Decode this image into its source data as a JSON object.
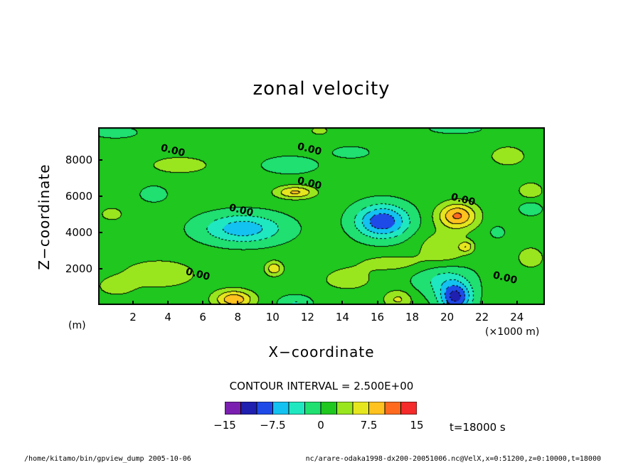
{
  "chart_data": {
    "type": "heatmap",
    "title": "zonal velocity",
    "xlabel": "X−coordinate",
    "ylabel": "Z−coordinate",
    "x_unit": "(×1000 m)",
    "y_unit": "(m)",
    "xlim": [
      0,
      25.6
    ],
    "ylim": [
      0,
      9800
    ],
    "x_ticks": [
      2,
      4,
      6,
      8,
      10,
      12,
      14,
      16,
      18,
      20,
      22,
      24
    ],
    "y_ticks": [
      2000,
      4000,
      6000,
      8000
    ],
    "contour_interval_text": "CONTOUR INTERVAL = 2.500E+00",
    "contour_labels": [
      {
        "x": 4.3,
        "z": 8500,
        "value": "0.00"
      },
      {
        "x": 12.1,
        "z": 8600,
        "value": "0.00"
      },
      {
        "x": 12.1,
        "z": 6700,
        "value": "0.00"
      },
      {
        "x": 8.2,
        "z": 5200,
        "value": "0.00"
      },
      {
        "x": 20.9,
        "z": 5800,
        "value": "0.00"
      },
      {
        "x": 5.7,
        "z": 1700,
        "value": "0.00"
      },
      {
        "x": 23.3,
        "z": 1500,
        "value": "0.00"
      }
    ],
    "features": [
      {
        "x": 8.3,
        "z": 4200,
        "value": -7.5,
        "sx": 2.3,
        "sz": 800
      },
      {
        "x": 16.3,
        "z": 4600,
        "value": -10.5,
        "sx": 1.5,
        "sz": 900
      },
      {
        "x": 20.5,
        "z": 400,
        "value": -11,
        "sx": 0.9,
        "sz": 800
      },
      {
        "x": 19.8,
        "z": 1400,
        "value": -4,
        "sx": 1.6,
        "sz": 900
      },
      {
        "x": 20.6,
        "z": 4900,
        "value": 9.5,
        "sx": 1.1,
        "sz": 700
      },
      {
        "x": 11.3,
        "z": 6200,
        "value": 7,
        "sx": 1.1,
        "sz": 350
      },
      {
        "x": 7.8,
        "z": 300,
        "value": 8.5,
        "sx": 1.1,
        "sz": 500
      },
      {
        "x": 10.1,
        "z": 2000,
        "value": 6,
        "sx": 0.5,
        "sz": 400
      },
      {
        "x": 21.1,
        "z": 3200,
        "value": 5,
        "sx": 0.4,
        "sz": 300
      },
      {
        "x": 17.2,
        "z": 300,
        "value": 4.5,
        "sx": 0.8,
        "sz": 500
      },
      {
        "x": 3.5,
        "z": 1700,
        "value": 3,
        "sx": 2.5,
        "sz": 900
      },
      {
        "x": 4.7,
        "z": 7700,
        "value": 3.2,
        "sx": 1.8,
        "sz": 500
      },
      {
        "x": 14.3,
        "z": 1400,
        "value": 3.3,
        "sx": 1.4,
        "sz": 600
      },
      {
        "x": 19.8,
        "z": 3100,
        "value": 3.8,
        "sx": 1.4,
        "sz": 900
      },
      {
        "x": 24.8,
        "z": 6300,
        "value": 3.1,
        "sx": 0.8,
        "sz": 500
      },
      {
        "x": 23.5,
        "z": 8200,
        "value": 2.6,
        "sx": 1.3,
        "sz": 700
      },
      {
        "x": 12.7,
        "z": 9600,
        "value": 3.2,
        "sx": 0.5,
        "sz": 250
      },
      {
        "x": 24.8,
        "z": 2600,
        "value": 2.8,
        "sx": 0.9,
        "sz": 700
      },
      {
        "x": 3.2,
        "z": 6100,
        "value": -3.1,
        "sx": 0.7,
        "sz": 400
      },
      {
        "x": 11.0,
        "z": 7700,
        "value": -3.0,
        "sx": 1.5,
        "sz": 450
      },
      {
        "x": 14.5,
        "z": 8400,
        "value": -2.7,
        "sx": 1.0,
        "sz": 300
      },
      {
        "x": 1.0,
        "z": 9500,
        "value": -2.7,
        "sx": 1.2,
        "sz": 300
      },
      {
        "x": 20.5,
        "z": 9700,
        "value": -2.8,
        "sx": 1.4,
        "sz": 250
      },
      {
        "x": 24.8,
        "z": 5300,
        "value": -3.2,
        "sx": 0.6,
        "sz": 350
      },
      {
        "x": 22.9,
        "z": 4000,
        "value": -2.7,
        "sx": 0.4,
        "sz": 300
      },
      {
        "x": 11.3,
        "z": 100,
        "value": -3.5,
        "sx": 0.9,
        "sz": 400
      },
      {
        "x": 0.8,
        "z": 5000,
        "value": 2.9,
        "sx": 0.7,
        "sz": 400
      },
      {
        "x": 1.0,
        "z": 1000,
        "value": 2.8,
        "sx": 1.0,
        "sz": 500
      },
      {
        "x": 16.8,
        "z": 2300,
        "value": 2.6,
        "sx": 2.2,
        "sz": 500
      }
    ]
  },
  "colorbar": {
    "levels": [
      -15,
      -12.5,
      -10,
      -7.5,
      -5,
      -2.5,
      0,
      2.5,
      5,
      7.5,
      10,
      12.5,
      15
    ],
    "colors": [
      "#7a1fb0",
      "#1f1fb0",
      "#1e4ae8",
      "#13c2f0",
      "#1fe8c0",
      "#1fe070",
      "#1fc71f",
      "#99e61f",
      "#e6e61f",
      "#ffc21f",
      "#ff6a1f",
      "#f52a2a",
      "#ffa0a8"
    ],
    "tick_labels": [
      "−15",
      "−7.5",
      "0",
      "7.5",
      "15"
    ]
  },
  "time_label": "t=18000  s",
  "footer_left": "/home/kitamo/bin/gpview_dump  2005-10-06",
  "footer_right": "nc/arare-odaka1998-dx200-20051006.nc@VelX,x=0:51200,z=0:10000,t=18000"
}
